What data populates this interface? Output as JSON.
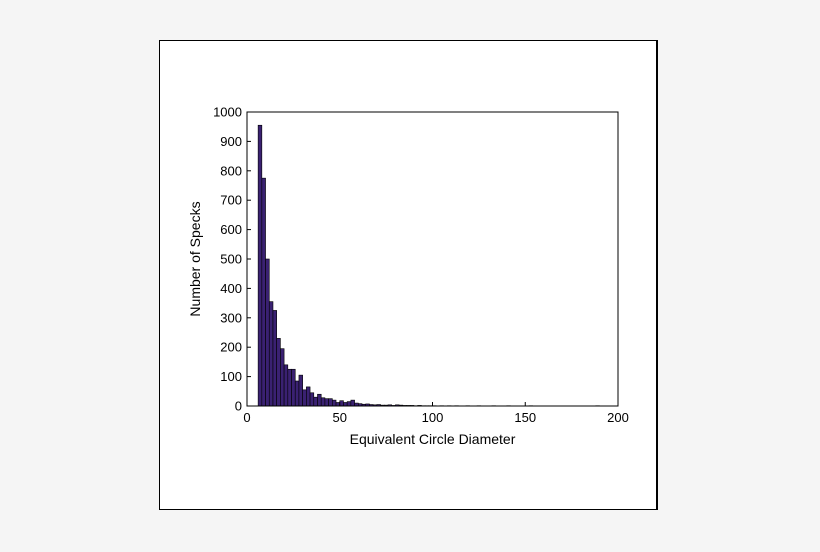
{
  "chart_data": {
    "type": "bar",
    "title": "",
    "xlabel": "Equivalent Circle Diameter",
    "ylabel": "Number of Specks",
    "xlim": [
      0,
      200
    ],
    "ylim": [
      0,
      1000
    ],
    "xticks": [
      0,
      50,
      100,
      150,
      200
    ],
    "yticks": [
      0,
      100,
      200,
      300,
      400,
      500,
      600,
      700,
      800,
      900,
      1000
    ],
    "bin_width": 2,
    "bins": [
      {
        "x0": 6,
        "value": 955
      },
      {
        "x0": 8,
        "value": 775
      },
      {
        "x0": 10,
        "value": 500
      },
      {
        "x0": 12,
        "value": 355
      },
      {
        "x0": 14,
        "value": 325
      },
      {
        "x0": 16,
        "value": 230
      },
      {
        "x0": 18,
        "value": 195
      },
      {
        "x0": 20,
        "value": 140
      },
      {
        "x0": 22,
        "value": 125
      },
      {
        "x0": 24,
        "value": 125
      },
      {
        "x0": 26,
        "value": 85
      },
      {
        "x0": 28,
        "value": 105
      },
      {
        "x0": 30,
        "value": 55
      },
      {
        "x0": 32,
        "value": 65
      },
      {
        "x0": 34,
        "value": 45
      },
      {
        "x0": 36,
        "value": 30
      },
      {
        "x0": 38,
        "value": 40
      },
      {
        "x0": 40,
        "value": 28
      },
      {
        "x0": 42,
        "value": 25
      },
      {
        "x0": 44,
        "value": 25
      },
      {
        "x0": 46,
        "value": 20
      },
      {
        "x0": 48,
        "value": 12
      },
      {
        "x0": 50,
        "value": 18
      },
      {
        "x0": 52,
        "value": 12
      },
      {
        "x0": 54,
        "value": 15
      },
      {
        "x0": 56,
        "value": 20
      },
      {
        "x0": 58,
        "value": 10
      },
      {
        "x0": 60,
        "value": 8
      },
      {
        "x0": 62,
        "value": 6
      },
      {
        "x0": 64,
        "value": 7
      },
      {
        "x0": 66,
        "value": 5
      },
      {
        "x0": 68,
        "value": 4
      },
      {
        "x0": 70,
        "value": 5
      },
      {
        "x0": 72,
        "value": 3
      },
      {
        "x0": 74,
        "value": 3
      },
      {
        "x0": 76,
        "value": 4
      },
      {
        "x0": 78,
        "value": 2
      },
      {
        "x0": 80,
        "value": 4
      },
      {
        "x0": 82,
        "value": 3
      },
      {
        "x0": 84,
        "value": 2
      },
      {
        "x0": 86,
        "value": 2
      },
      {
        "x0": 88,
        "value": 2
      },
      {
        "x0": 90,
        "value": 1
      },
      {
        "x0": 92,
        "value": 2
      },
      {
        "x0": 94,
        "value": 1
      },
      {
        "x0": 96,
        "value": 1
      },
      {
        "x0": 98,
        "value": 1
      },
      {
        "x0": 100,
        "value": 1
      },
      {
        "x0": 104,
        "value": 1
      },
      {
        "x0": 108,
        "value": 1
      },
      {
        "x0": 112,
        "value": 1
      },
      {
        "x0": 118,
        "value": 1
      },
      {
        "x0": 124,
        "value": 1
      },
      {
        "x0": 132,
        "value": 1
      },
      {
        "x0": 140,
        "value": 1
      },
      {
        "x0": 152,
        "value": 1
      },
      {
        "x0": 188,
        "value": 1
      }
    ],
    "grid": false,
    "bar_color": "#3a2172",
    "bar_edge_color": "#000000"
  }
}
